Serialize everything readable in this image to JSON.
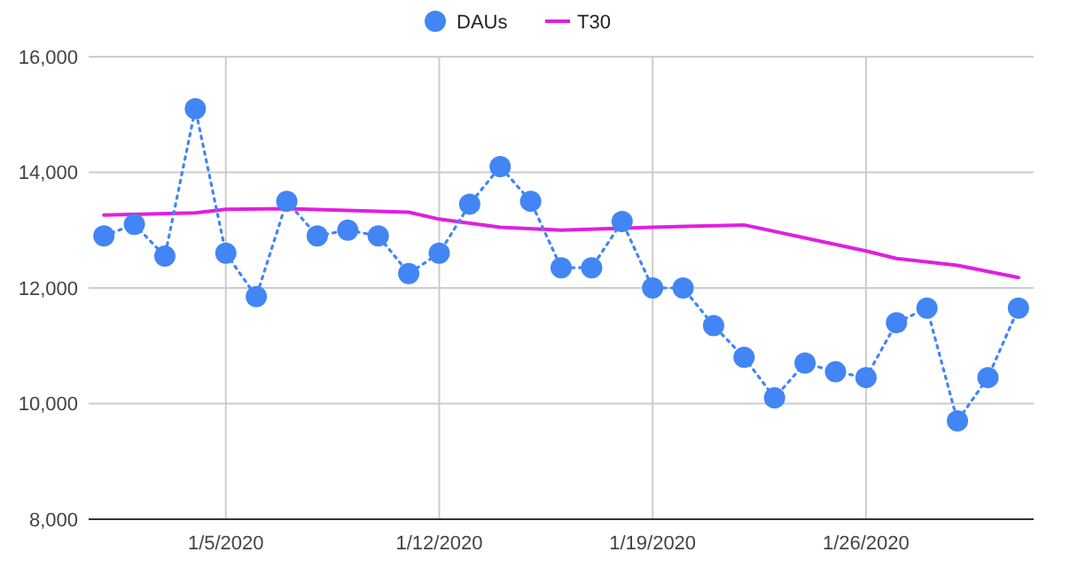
{
  "chart_data": {
    "type": "line",
    "x": [
      "2020-01-01",
      "2020-01-02",
      "2020-01-03",
      "2020-01-04",
      "2020-01-05",
      "2020-01-06",
      "2020-01-07",
      "2020-01-08",
      "2020-01-09",
      "2020-01-10",
      "2020-01-11",
      "2020-01-12",
      "2020-01-13",
      "2020-01-14",
      "2020-01-15",
      "2020-01-16",
      "2020-01-17",
      "2020-01-18",
      "2020-01-19",
      "2020-01-20",
      "2020-01-21",
      "2020-01-22",
      "2020-01-23",
      "2020-01-24",
      "2020-01-25",
      "2020-01-26",
      "2020-01-27",
      "2020-01-28",
      "2020-01-29",
      "2020-01-30",
      "2020-01-31"
    ],
    "series": [
      {
        "name": "DAUs",
        "color": "#4285f4",
        "marker": "circle",
        "line_style": "dotted",
        "values": [
          12900,
          13100,
          12550,
          15100,
          12600,
          11850,
          13500,
          12900,
          13000,
          12900,
          12250,
          12600,
          13450,
          14100,
          13500,
          12350,
          12350,
          13150,
          12000,
          12000,
          11350,
          10800,
          10100,
          10700,
          10550,
          10450,
          11400,
          11650,
          9700,
          10450,
          11650
        ]
      },
      {
        "name": "T30",
        "color": "#e01fe0",
        "marker": "none",
        "line_style": "solid",
        "x": [
          "2020-01-01",
          "2020-01-04",
          "2020-01-05",
          "2020-01-07",
          "2020-01-11",
          "2020-01-12",
          "2020-01-14",
          "2020-01-16",
          "2020-01-19",
          "2020-01-22",
          "2020-01-26",
          "2020-01-27",
          "2020-01-29",
          "2020-01-31"
        ],
        "values": [
          13260,
          13300,
          13360,
          13370,
          13310,
          13190,
          13050,
          13000,
          13050,
          13090,
          12640,
          12510,
          12390,
          12180
        ]
      }
    ],
    "xlim": [
      "2019-12-31T12:00",
      "2020-01-31T12:00"
    ],
    "xticks": [
      {
        "value": "2020-01-05",
        "label": "1/5/2020"
      },
      {
        "value": "2020-01-12",
        "label": "1/12/2020"
      },
      {
        "value": "2020-01-19",
        "label": "1/19/2020"
      },
      {
        "value": "2020-01-26",
        "label": "1/26/2020"
      }
    ],
    "ylim": [
      8000,
      16000
    ],
    "yticks": [
      {
        "value": 8000,
        "label": "8,000"
      },
      {
        "value": 10000,
        "label": "10,000"
      },
      {
        "value": 12000,
        "label": "12,000"
      },
      {
        "value": 14000,
        "label": "14,000"
      },
      {
        "value": 16000,
        "label": "16,000"
      }
    ],
    "grid": true,
    "legend": "top"
  }
}
